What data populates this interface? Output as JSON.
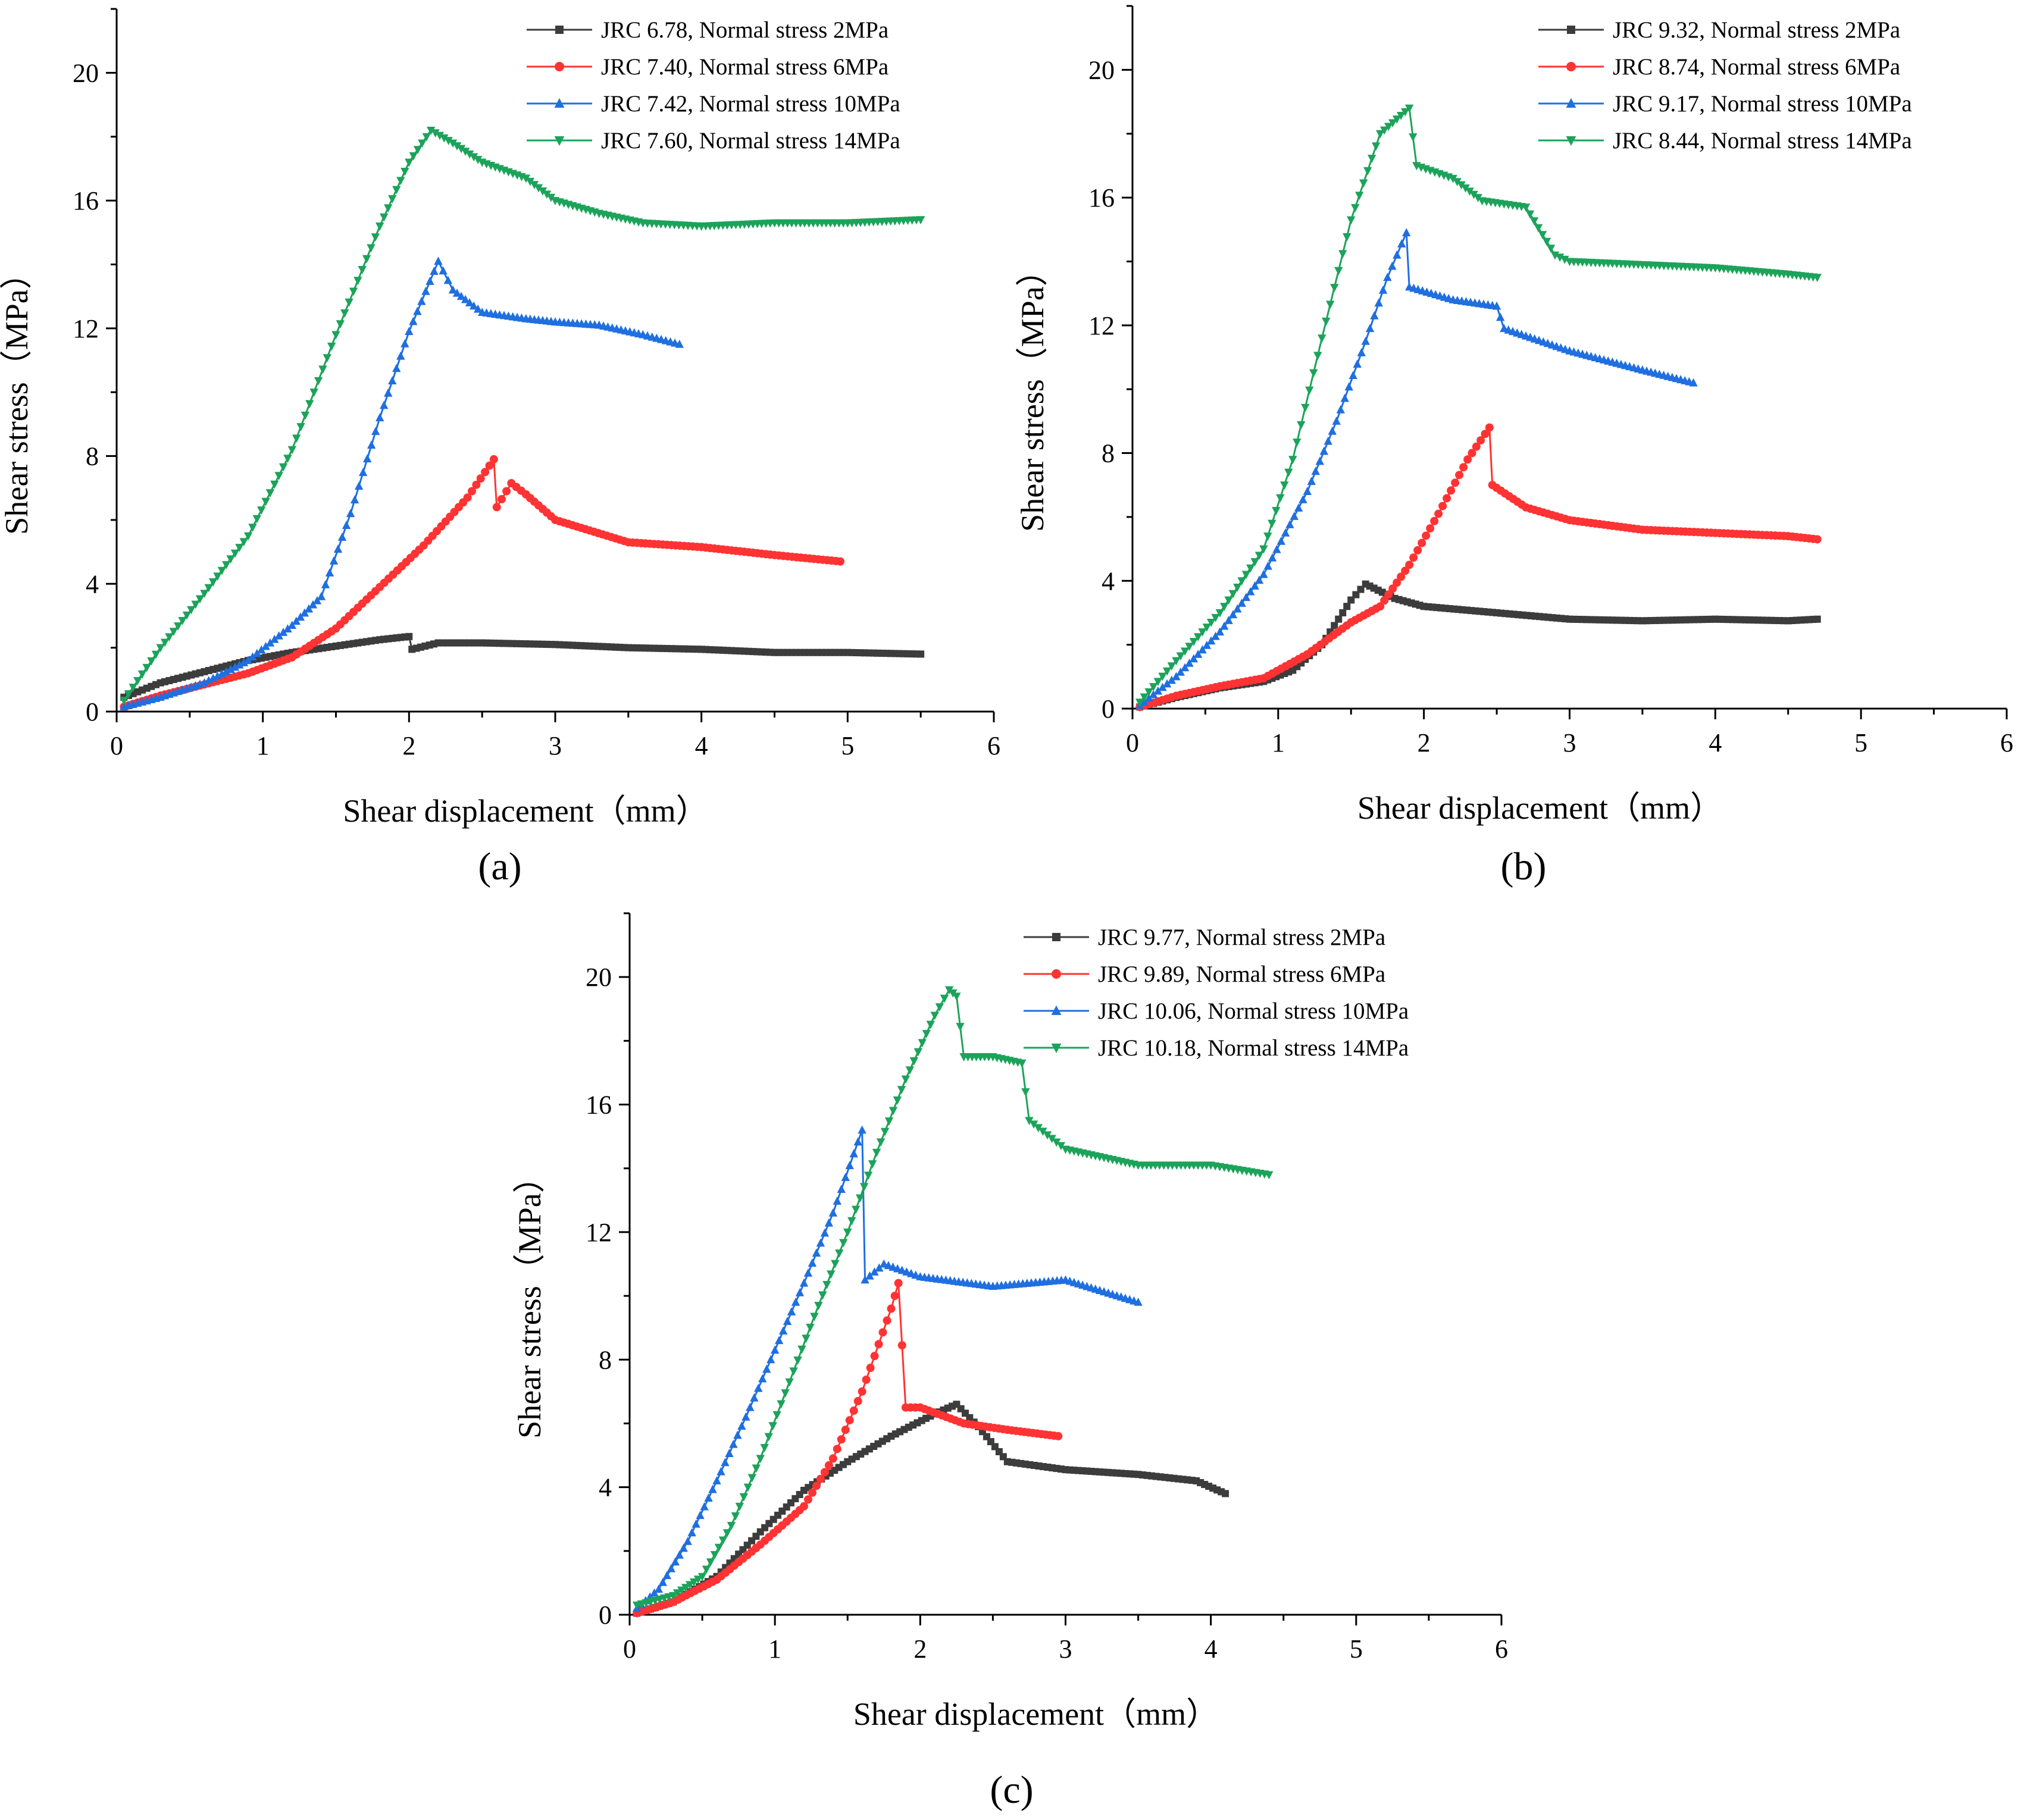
{
  "chart_data": [
    {
      "type": "line",
      "panel": "(a)",
      "xlabel": "Shear displacement（mm）",
      "ylabel": "Shear stress（MPa）",
      "xlim": [
        0,
        6
      ],
      "ylim": [
        0,
        22
      ],
      "xticks": [
        0,
        1,
        2,
        3,
        4,
        5,
        6
      ],
      "yticks": [
        0,
        4,
        8,
        12,
        16,
        20
      ],
      "legend_position": "top-right",
      "series": [
        {
          "name": "JRC 6.78, Normal stress 2MPa",
          "color": "#3c3c3c",
          "marker": "square",
          "x": [
            0.05,
            0.3,
            0.6,
            0.9,
            1.2,
            1.5,
            1.8,
            2.0,
            2.02,
            2.2,
            2.5,
            3.0,
            3.5,
            4.0,
            4.5,
            5.0,
            5.5
          ],
          "y": [
            0.45,
            0.9,
            1.25,
            1.6,
            1.85,
            2.05,
            2.25,
            2.35,
            1.95,
            2.15,
            2.15,
            2.1,
            2.0,
            1.95,
            1.85,
            1.85,
            1.8
          ]
        },
        {
          "name": "JRC 7.40, Normal stress 6MPa",
          "color": "#ff3333",
          "marker": "circle",
          "x": [
            0.05,
            0.3,
            0.6,
            0.9,
            1.2,
            1.5,
            1.8,
            2.1,
            2.4,
            2.58,
            2.6,
            2.7,
            2.8,
            3.0,
            3.5,
            4.0,
            4.5,
            4.95
          ],
          "y": [
            0.15,
            0.5,
            0.85,
            1.2,
            1.7,
            2.6,
            3.9,
            5.2,
            6.7,
            7.9,
            6.4,
            7.15,
            6.8,
            6.0,
            5.3,
            5.15,
            4.9,
            4.7
          ]
        },
        {
          "name": "JRC 7.42, Normal stress 10MPa",
          "color": "#1f6fe0",
          "marker": "triangle-up",
          "x": [
            0.05,
            0.3,
            0.6,
            0.9,
            1.2,
            1.4,
            1.6,
            1.8,
            2.0,
            2.2,
            2.3,
            2.5,
            2.8,
            3.0,
            3.3,
            3.6,
            3.85
          ],
          "y": [
            0.15,
            0.45,
            0.9,
            1.6,
            2.7,
            3.6,
            6.2,
            9.2,
            11.9,
            14.1,
            13.2,
            12.5,
            12.3,
            12.2,
            12.1,
            11.8,
            11.5
          ]
        },
        {
          "name": "JRC 7.60, Normal stress 14MPa",
          "color": "#1ca35a",
          "marker": "triangle-down",
          "x": [
            0.05,
            0.3,
            0.6,
            0.9,
            1.2,
            1.5,
            1.8,
            2.0,
            2.15,
            2.3,
            2.5,
            2.8,
            3.0,
            3.3,
            3.6,
            4.0,
            4.5,
            5.0,
            5.5
          ],
          "y": [
            0.35,
            2.0,
            3.7,
            5.5,
            8.2,
            11.8,
            15.2,
            17.2,
            18.2,
            17.8,
            17.2,
            16.7,
            16.0,
            15.6,
            15.3,
            15.2,
            15.3,
            15.3,
            15.4
          ]
        }
      ]
    },
    {
      "type": "line",
      "panel": "(b)",
      "xlabel": "Shear displacement（mm）",
      "ylabel": "Shear stress（MPa）",
      "xlim": [
        0,
        6
      ],
      "ylim": [
        0,
        22
      ],
      "xticks": [
        0,
        1,
        2,
        3,
        4,
        5,
        6
      ],
      "yticks": [
        0,
        4,
        8,
        12,
        16,
        20
      ],
      "legend_position": "top-right",
      "series": [
        {
          "name": "JRC 9.32, Normal stress 2MPa",
          "color": "#3c3c3c",
          "marker": "square",
          "x": [
            0.05,
            0.3,
            0.6,
            0.9,
            1.1,
            1.3,
            1.5,
            1.6,
            1.8,
            2.0,
            2.5,
            3.0,
            3.5,
            4.0,
            4.5,
            4.7
          ],
          "y": [
            0.05,
            0.35,
            0.65,
            0.85,
            1.2,
            2.0,
            3.4,
            3.9,
            3.45,
            3.2,
            3.0,
            2.8,
            2.75,
            2.8,
            2.75,
            2.8
          ]
        },
        {
          "name": "JRC 8.74, Normal stress 6MPa",
          "color": "#ff3333",
          "marker": "circle",
          "x": [
            0.05,
            0.3,
            0.6,
            0.9,
            1.2,
            1.5,
            1.7,
            1.9,
            2.1,
            2.3,
            2.45,
            2.47,
            2.7,
            3.0,
            3.5,
            4.0,
            4.5,
            4.7
          ],
          "y": [
            0.05,
            0.4,
            0.7,
            0.95,
            1.7,
            2.7,
            3.2,
            4.5,
            6.1,
            7.8,
            8.8,
            7.0,
            6.3,
            5.9,
            5.6,
            5.5,
            5.4,
            5.3
          ]
        },
        {
          "name": "JRC 9.17, Normal stress 10MPa",
          "color": "#1f6fe0",
          "marker": "triangle-up",
          "x": [
            0.05,
            0.3,
            0.6,
            0.9,
            1.2,
            1.4,
            1.6,
            1.75,
            1.88,
            1.9,
            2.2,
            2.5,
            2.55,
            3.0,
            3.5,
            3.85
          ],
          "y": [
            0.1,
            1.0,
            2.4,
            4.2,
            6.8,
            9.0,
            11.5,
            13.5,
            14.9,
            13.2,
            12.8,
            12.6,
            11.9,
            11.2,
            10.6,
            10.2
          ]
        },
        {
          "name": "JRC 8.44, Normal stress 14MPa",
          "color": "#1ca35a",
          "marker": "triangle-down",
          "x": [
            0.05,
            0.3,
            0.6,
            0.9,
            1.1,
            1.3,
            1.5,
            1.7,
            1.9,
            1.95,
            2.2,
            2.4,
            2.7,
            2.9,
            3.0,
            3.5,
            4.0,
            4.5,
            4.7
          ],
          "y": [
            0.2,
            1.5,
            3.0,
            5.0,
            7.8,
            11.6,
            15.3,
            18.0,
            18.8,
            17.0,
            16.6,
            15.9,
            15.7,
            14.2,
            14.0,
            13.9,
            13.8,
            13.6,
            13.5
          ]
        }
      ]
    },
    {
      "type": "line",
      "panel": "(c)",
      "xlabel": "Shear displacement（mm）",
      "ylabel": "Shear stress（MPa）",
      "xlim": [
        0,
        6
      ],
      "ylim": [
        0,
        22
      ],
      "xticks": [
        0,
        1,
        2,
        3,
        4,
        5,
        6
      ],
      "yticks": [
        0,
        4,
        8,
        12,
        16,
        20
      ],
      "legend_position": "top-right",
      "series": [
        {
          "name": "JRC 9.77, Normal stress 2MPa",
          "color": "#3c3c3c",
          "marker": "square",
          "x": [
            0.05,
            0.3,
            0.6,
            0.9,
            1.2,
            1.5,
            1.8,
            2.1,
            2.25,
            2.4,
            2.6,
            3.0,
            3.5,
            3.9,
            4.1
          ],
          "y": [
            0.05,
            0.4,
            1.2,
            2.6,
            3.9,
            4.8,
            5.6,
            6.3,
            6.6,
            5.9,
            4.8,
            4.55,
            4.4,
            4.2,
            3.8
          ]
        },
        {
          "name": "JRC 9.89, Normal stress 6MPa",
          "color": "#ff3333",
          "marker": "circle",
          "x": [
            0.05,
            0.3,
            0.6,
            0.9,
            1.2,
            1.4,
            1.6,
            1.8,
            1.85,
            1.9,
            2.0,
            2.3,
            2.6,
            2.95
          ],
          "y": [
            0.05,
            0.4,
            1.1,
            2.2,
            3.4,
            4.9,
            7.0,
            9.6,
            10.4,
            6.5,
            6.5,
            6.0,
            5.8,
            5.6
          ]
        },
        {
          "name": "JRC 10.06, Normal stress 10MPa",
          "color": "#1f6fe0",
          "marker": "triangle-up",
          "x": [
            0.05,
            0.2,
            0.4,
            0.6,
            0.8,
            1.0,
            1.2,
            1.4,
            1.6,
            1.62,
            1.75,
            2.0,
            2.5,
            3.0,
            3.5
          ],
          "y": [
            0.2,
            0.8,
            2.3,
            4.2,
            6.2,
            8.3,
            10.4,
            12.6,
            15.2,
            10.5,
            11.0,
            10.6,
            10.3,
            10.5,
            9.8
          ]
        },
        {
          "name": "JRC 10.18, Normal stress 14MPa",
          "color": "#1ca35a",
          "marker": "triangle-down",
          "x": [
            0.05,
            0.3,
            0.5,
            0.7,
            0.9,
            1.1,
            1.3,
            1.5,
            1.7,
            1.9,
            2.1,
            2.2,
            2.25,
            2.3,
            2.5,
            2.7,
            2.75,
            3.0,
            3.5,
            4.0,
            4.4
          ],
          "y": [
            0.3,
            0.6,
            1.2,
            2.8,
            4.9,
            7.3,
            9.7,
            12.0,
            14.5,
            16.8,
            18.8,
            19.6,
            19.4,
            17.5,
            17.5,
            17.3,
            15.5,
            14.6,
            14.1,
            14.1,
            13.8
          ]
        }
      ]
    }
  ]
}
